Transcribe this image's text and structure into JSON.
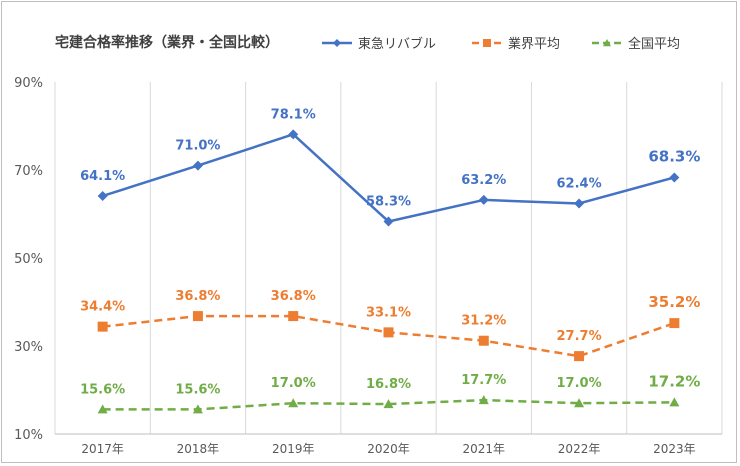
{
  "chart_data": {
    "type": "line",
    "title": "宅建合格率推移（業界・全国比較）",
    "xlabel": "",
    "ylabel": "",
    "categories": [
      "2017年",
      "2018年",
      "2019年",
      "2020年",
      "2021年",
      "2022年",
      "2023年"
    ],
    "ylim": [
      10,
      90
    ],
    "yticks": [
      10,
      30,
      50,
      70,
      90
    ],
    "ytick_labels": [
      "10%",
      "30%",
      "50%",
      "70%",
      "90%"
    ],
    "grid": "vertical",
    "legend": "top-right",
    "series": [
      {
        "name": "東急リバブル",
        "values": [
          64.1,
          71.0,
          78.1,
          58.3,
          63.2,
          62.4,
          68.3
        ],
        "labels": [
          "64.1%",
          "71.0%",
          "78.1%",
          "58.3%",
          "63.2%",
          "62.4%",
          "68.3%"
        ],
        "color": "#4472C4",
        "marker": "diamond",
        "dash": "solid"
      },
      {
        "name": "業界平均",
        "values": [
          34.4,
          36.8,
          36.8,
          33.1,
          31.2,
          27.7,
          35.2
        ],
        "labels": [
          "34.4%",
          "36.8%",
          "36.8%",
          "33.1%",
          "31.2%",
          "27.7%",
          "35.2%"
        ],
        "color": "#ED7D31",
        "marker": "square",
        "dash": "dashed"
      },
      {
        "name": "全国平均",
        "values": [
          15.6,
          15.6,
          17.0,
          16.8,
          17.7,
          17.0,
          17.2
        ],
        "labels": [
          "15.6%",
          "15.6%",
          "17.0%",
          "16.8%",
          "17.7%",
          "17.0%",
          "17.2%"
        ],
        "color": "#70AD47",
        "marker": "triangle",
        "dash": "dashed"
      }
    ]
  }
}
